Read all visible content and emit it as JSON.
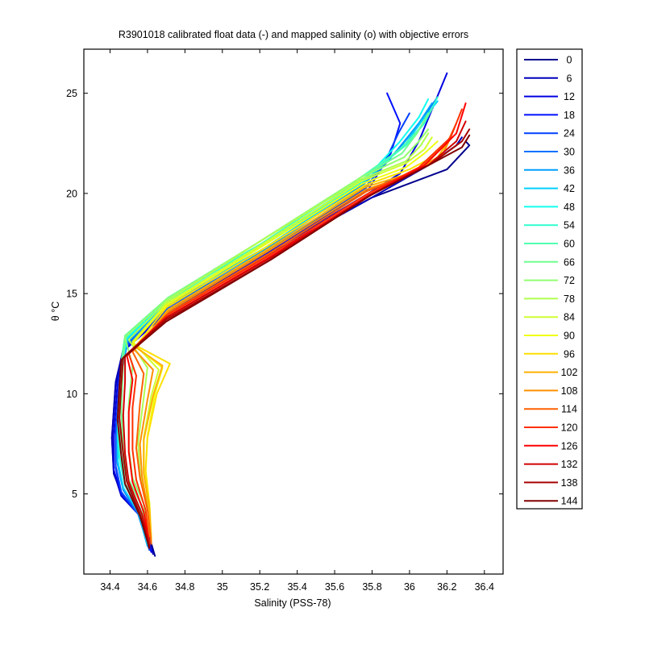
{
  "chart_data": {
    "type": "line",
    "title": "R3901018 calibrated float data (-) and mapped salinity (o) with objective errors",
    "xlabel": "Salinity (PSS-78)",
    "ylabel": "θ °C",
    "xlim": [
      34.26,
      36.5
    ],
    "ylim": [
      1.0,
      27.2
    ],
    "x_ticks": [
      "34.4",
      "34.6",
      "34.8",
      "35",
      "35.2",
      "35.4",
      "35.6",
      "35.8",
      "36",
      "36.2",
      "36.4"
    ],
    "x_tick_values": [
      34.4,
      34.6,
      34.8,
      35.0,
      35.2,
      35.4,
      35.6,
      35.8,
      36.0,
      36.2,
      36.4
    ],
    "y_ticks": [
      "5",
      "10",
      "15",
      "20",
      "25"
    ],
    "y_tick_values": [
      5,
      10,
      15,
      20,
      25
    ],
    "legend": {
      "placement": "outside-right",
      "entries": [
        {
          "label": "0",
          "color": "#00008F"
        },
        {
          "label": "6",
          "color": "#0000B8"
        },
        {
          "label": "12",
          "color": "#0000E0"
        },
        {
          "label": "18",
          "color": "#0010FF"
        },
        {
          "label": "24",
          "color": "#0040FF"
        },
        {
          "label": "30",
          "color": "#0070FF"
        },
        {
          "label": "36",
          "color": "#00A0FF"
        },
        {
          "label": "42",
          "color": "#00D0FF"
        },
        {
          "label": "48",
          "color": "#10FFEF"
        },
        {
          "label": "54",
          "color": "#30FFCF"
        },
        {
          "label": "60",
          "color": "#50FFAF"
        },
        {
          "label": "66",
          "color": "#70FF8F"
        },
        {
          "label": "72",
          "color": "#90FF70"
        },
        {
          "label": "78",
          "color": "#B0FF50"
        },
        {
          "label": "84",
          "color": "#D0FF30"
        },
        {
          "label": "90",
          "color": "#F0FF10"
        },
        {
          "label": "96",
          "color": "#FFE000"
        },
        {
          "label": "102",
          "color": "#FFB000"
        },
        {
          "label": "108",
          "color": "#FF9000"
        },
        {
          "label": "114",
          "color": "#FF6000"
        },
        {
          "label": "120",
          "color": "#FF3000"
        },
        {
          "label": "126",
          "color": "#FF0000"
        },
        {
          "label": "132",
          "color": "#D00000"
        },
        {
          "label": "138",
          "color": "#A80000"
        },
        {
          "label": "144",
          "color": "#800000"
        }
      ]
    },
    "series_profiles": [
      {
        "name": "0",
        "x": [
          34.64,
          34.58,
          34.47,
          34.42,
          34.41,
          34.43,
          34.47,
          34.7,
          35.2,
          35.8,
          36.2,
          36.32,
          36.3
        ],
        "y": [
          1.9,
          3.8,
          4.8,
          6.0,
          7.8,
          10.5,
          12.2,
          14.0,
          16.7,
          19.8,
          21.2,
          22.4,
          22.6
        ]
      },
      {
        "name": "6",
        "x": [
          34.63,
          34.57,
          34.46,
          34.42,
          34.41,
          34.43,
          34.47,
          34.7,
          35.2,
          35.8,
          36.1,
          36.25,
          36.28
        ],
        "y": [
          2.0,
          3.8,
          4.9,
          6.1,
          7.8,
          10.6,
          12.2,
          14.0,
          16.7,
          19.8,
          21.4,
          22.4,
          22.8
        ]
      },
      {
        "name": "12",
        "x": [
          34.62,
          34.56,
          34.46,
          34.42,
          34.42,
          34.44,
          34.48,
          34.71,
          35.21,
          35.78,
          35.95,
          36.05,
          36.2
        ],
        "y": [
          2.1,
          3.9,
          5.0,
          6.2,
          7.9,
          10.6,
          12.2,
          14.1,
          16.8,
          20.0,
          21.0,
          22.6,
          26.0
        ]
      },
      {
        "name": "18",
        "x": [
          34.62,
          34.56,
          34.46,
          34.43,
          34.43,
          34.45,
          34.48,
          34.71,
          35.22,
          35.78,
          35.9,
          35.95,
          35.88
        ],
        "y": [
          2.2,
          3.9,
          5.0,
          6.3,
          8.0,
          10.7,
          12.3,
          14.2,
          16.9,
          20.2,
          22.0,
          23.5,
          25.0
        ]
      },
      {
        "name": "24",
        "x": [
          34.61,
          34.55,
          34.46,
          34.43,
          34.43,
          34.45,
          34.49,
          34.72,
          35.22,
          35.77,
          35.88,
          35.94,
          36.0
        ],
        "y": [
          2.2,
          4.0,
          5.1,
          6.4,
          8.1,
          10.8,
          12.4,
          14.3,
          17.0,
          20.3,
          21.8,
          23.0,
          24.0
        ]
      },
      {
        "name": "30",
        "x": [
          34.61,
          34.55,
          34.47,
          34.44,
          34.44,
          34.46,
          34.49,
          34.72,
          35.23,
          35.77,
          35.92,
          36.05,
          36.15
        ],
        "y": [
          2.3,
          4.0,
          5.2,
          6.5,
          8.2,
          10.9,
          12.5,
          14.4,
          17.1,
          20.4,
          22.0,
          23.5,
          24.8
        ]
      },
      {
        "name": "36",
        "x": [
          34.6,
          34.55,
          34.47,
          34.44,
          34.44,
          34.46,
          34.49,
          34.72,
          35.23,
          35.76,
          35.95,
          36.05,
          36.12
        ],
        "y": [
          2.4,
          4.1,
          5.3,
          6.6,
          8.4,
          11.0,
          12.6,
          14.5,
          17.2,
          20.5,
          22.3,
          23.5,
          24.5
        ]
      },
      {
        "name": "42",
        "x": [
          34.6,
          34.55,
          34.47,
          34.44,
          34.44,
          34.46,
          34.49,
          34.72,
          35.23,
          35.76,
          35.98,
          36.08,
          36.15
        ],
        "y": [
          2.5,
          4.1,
          5.3,
          6.7,
          8.5,
          11.2,
          12.7,
          14.6,
          17.3,
          20.6,
          22.5,
          23.8,
          24.6
        ]
      },
      {
        "name": "48",
        "x": [
          34.6,
          34.56,
          34.48,
          34.45,
          34.44,
          34.46,
          34.49,
          34.72,
          35.22,
          35.75,
          35.95,
          36.05,
          36.1
        ],
        "y": [
          2.6,
          4.2,
          5.4,
          6.8,
          8.6,
          11.3,
          12.8,
          14.7,
          17.4,
          20.6,
          22.6,
          23.8,
          24.7
        ]
      },
      {
        "name": "54",
        "x": [
          34.6,
          34.56,
          34.48,
          34.45,
          34.44,
          34.46,
          34.49,
          34.72,
          35.22,
          35.75,
          35.98,
          36.08,
          36.15
        ],
        "y": [
          2.7,
          4.3,
          5.5,
          6.9,
          8.8,
          11.4,
          12.9,
          14.8,
          17.5,
          20.7,
          22.4,
          23.5,
          24.8
        ]
      },
      {
        "name": "60",
        "x": [
          34.6,
          34.56,
          34.49,
          34.46,
          34.45,
          34.46,
          34.48,
          34.71,
          35.21,
          35.74,
          35.95,
          36.05,
          36.12
        ],
        "y": [
          2.8,
          4.3,
          5.6,
          7.0,
          9.0,
          11.6,
          12.9,
          14.8,
          17.5,
          20.8,
          22.2,
          23.2,
          24.2
        ]
      },
      {
        "name": "66",
        "x": [
          34.6,
          34.57,
          34.5,
          34.47,
          34.46,
          34.47,
          34.48,
          34.71,
          35.2,
          35.74,
          35.96,
          36.04,
          36.1
        ],
        "y": [
          2.8,
          4.4,
          5.7,
          7.1,
          9.2,
          11.6,
          12.9,
          14.8,
          17.6,
          20.8,
          22.0,
          23.0,
          24.0
        ]
      },
      {
        "name": "72",
        "x": [
          34.6,
          34.58,
          34.52,
          34.5,
          34.5,
          34.52,
          34.48,
          34.7,
          35.2,
          35.74,
          35.97,
          36.05,
          36.1
        ],
        "y": [
          2.9,
          4.5,
          5.8,
          7.3,
          9.5,
          11.4,
          12.8,
          14.7,
          17.6,
          20.8,
          21.8,
          22.6,
          23.2
        ]
      },
      {
        "name": "78",
        "x": [
          34.61,
          34.6,
          34.56,
          34.55,
          34.58,
          34.6,
          34.5,
          34.7,
          35.2,
          35.74,
          35.98,
          36.06,
          36.1
        ],
        "y": [
          2.9,
          4.6,
          6.0,
          7.6,
          9.8,
          11.3,
          12.7,
          14.6,
          17.6,
          20.7,
          21.6,
          22.4,
          23.0
        ]
      },
      {
        "name": "84",
        "x": [
          34.62,
          34.61,
          34.58,
          34.58,
          34.62,
          34.66,
          34.52,
          34.7,
          35.22,
          35.74,
          35.98,
          36.08,
          36.12
        ],
        "y": [
          2.8,
          4.6,
          6.1,
          7.8,
          9.9,
          11.2,
          12.6,
          14.5,
          17.5,
          20.6,
          21.5,
          22.2,
          22.8
        ]
      },
      {
        "name": "90",
        "x": [
          34.62,
          34.61,
          34.59,
          34.6,
          34.64,
          34.68,
          34.52,
          34.7,
          35.22,
          35.75,
          35.98,
          36.08,
          36.15
        ],
        "y": [
          2.7,
          4.5,
          6.2,
          7.9,
          10.0,
          11.3,
          12.5,
          14.4,
          17.4,
          20.5,
          21.3,
          22.0,
          22.6
        ]
      },
      {
        "name": "96",
        "x": [
          34.62,
          34.61,
          34.59,
          34.6,
          34.65,
          34.72,
          34.54,
          34.7,
          35.23,
          35.76,
          36.0,
          36.12,
          36.18
        ],
        "y": [
          2.6,
          4.4,
          6.1,
          7.8,
          10.0,
          11.5,
          12.4,
          14.3,
          17.3,
          20.4,
          21.2,
          21.8,
          22.4
        ]
      },
      {
        "name": "102",
        "x": [
          34.62,
          34.61,
          34.58,
          34.58,
          34.63,
          34.68,
          34.54,
          34.71,
          35.24,
          35.76,
          36.0,
          36.15,
          36.2
        ],
        "y": [
          2.6,
          4.3,
          6.0,
          7.7,
          9.9,
          11.4,
          12.3,
          14.2,
          17.2,
          20.3,
          21.0,
          21.8,
          22.5
        ]
      },
      {
        "name": "108",
        "x": [
          34.62,
          34.6,
          34.57,
          34.56,
          34.6,
          34.63,
          34.53,
          34.71,
          35.24,
          35.77,
          36.02,
          36.18,
          36.22
        ],
        "y": [
          2.6,
          4.3,
          5.9,
          7.5,
          9.7,
          11.2,
          12.2,
          14.1,
          17.1,
          20.2,
          21.0,
          22.0,
          22.8
        ]
      },
      {
        "name": "114",
        "x": [
          34.62,
          34.6,
          34.56,
          34.54,
          34.56,
          34.58,
          34.52,
          34.71,
          35.25,
          35.77,
          36.05,
          36.2,
          36.25
        ],
        "y": [
          2.5,
          4.2,
          5.8,
          7.3,
          9.5,
          11.0,
          12.1,
          14.0,
          17.0,
          20.1,
          21.2,
          22.5,
          23.5
        ]
      },
      {
        "name": "120",
        "x": [
          34.61,
          34.59,
          34.54,
          34.52,
          34.52,
          34.54,
          34.5,
          34.7,
          35.25,
          35.78,
          36.05,
          36.22,
          36.28
        ],
        "y": [
          2.5,
          4.2,
          5.7,
          7.2,
          9.3,
          10.9,
          12.0,
          13.9,
          16.9,
          20.0,
          21.3,
          22.8,
          24.2
        ]
      },
      {
        "name": "126",
        "x": [
          34.61,
          34.58,
          34.52,
          34.5,
          34.5,
          34.52,
          34.49,
          34.7,
          35.25,
          35.78,
          36.08,
          36.25,
          36.3
        ],
        "y": [
          2.4,
          4.1,
          5.6,
          7.1,
          9.1,
          10.7,
          11.9,
          13.8,
          16.8,
          19.9,
          21.4,
          23.0,
          24.5
        ]
      },
      {
        "name": "132",
        "x": [
          34.61,
          34.57,
          34.5,
          34.48,
          34.47,
          34.48,
          34.48,
          34.7,
          35.26,
          35.79,
          36.1,
          36.25,
          36.3
        ],
        "y": [
          2.4,
          4.0,
          5.6,
          7.0,
          8.9,
          10.6,
          11.9,
          13.8,
          16.8,
          19.9,
          21.4,
          22.6,
          23.6
        ]
      },
      {
        "name": "138",
        "x": [
          34.61,
          34.56,
          34.49,
          34.47,
          34.45,
          34.46,
          34.47,
          34.7,
          35.26,
          35.79,
          36.12,
          36.28,
          36.32
        ],
        "y": [
          2.3,
          4.0,
          5.6,
          7.0,
          8.8,
          10.5,
          11.8,
          13.7,
          16.7,
          19.9,
          21.5,
          22.6,
          23.2
        ]
      },
      {
        "name": "144",
        "x": [
          34.61,
          34.56,
          34.48,
          34.46,
          34.44,
          34.45,
          34.46,
          34.7,
          35.26,
          35.79,
          36.12,
          36.28,
          36.32
        ],
        "y": [
          2.3,
          3.9,
          5.5,
          6.9,
          8.7,
          10.4,
          11.7,
          13.6,
          16.7,
          19.9,
          21.5,
          22.3,
          22.9
        ]
      }
    ]
  }
}
